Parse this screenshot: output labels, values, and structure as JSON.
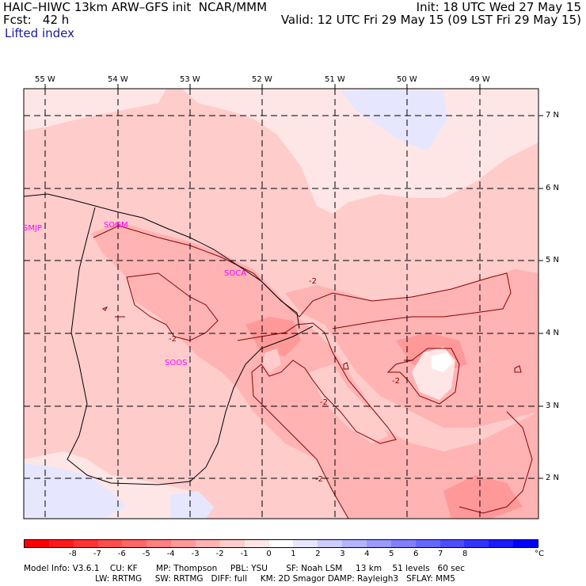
{
  "header": {
    "model_title": "HAIC–HIWC 13km ARW–GFS init  NCAR/MMM",
    "init_time": "Init: 18 UTC Wed 27 May 15",
    "forecast_hour": "Fcst:   42 h",
    "valid_time": "Valid: 12 UTC Fri 29 May 15 (09 LST Fri 29 May 15)",
    "field_name": "Lifted index"
  },
  "map": {
    "longitude_labels": [
      "55 W",
      "54 W",
      "53 W",
      "52 W",
      "51 W",
      "50 W",
      "49 W"
    ],
    "latitude_labels": [
      "7 N",
      "6 N",
      "5 N",
      "4 N",
      "3 N",
      "2 N"
    ],
    "stations": [
      "SMJP",
      "SOGM",
      "SOCA",
      "SOOS"
    ],
    "contour_labels": [
      "-2",
      "-2",
      "-2",
      "-2",
      "-2"
    ],
    "fill_colors": {
      "neg1": "#ffe6e6",
      "neg2": "#ffcccc",
      "neg3": "#ffb3b3",
      "neg4": "#ff9999",
      "zero": "#ffffff",
      "pos1": "#e6e6ff",
      "station_color": "#ff00ff",
      "contour_color": "#8b0000"
    }
  },
  "colorbar": {
    "labels": [
      "-8",
      "-7",
      "-6",
      "-5",
      "-4",
      "-3",
      "-2",
      "-1",
      "0",
      "1",
      "2",
      "3",
      "4",
      "5",
      "6",
      "7",
      "8"
    ],
    "unit": "°C",
    "colors": [
      "#ff0000",
      "#ff1a1a",
      "#ff3333",
      "#ff4d4d",
      "#ff6666",
      "#ff8080",
      "#ff9999",
      "#ffb3b3",
      "#ffcccc",
      "#ffe6e6",
      "#ffffff",
      "#e6e6ff",
      "#ccccff",
      "#b3b3ff",
      "#9999ff",
      "#8080ff",
      "#6666ff",
      "#4d4dff",
      "#3333ff",
      "#1a1aff",
      "#0000ff"
    ]
  },
  "footer": {
    "line1": "Model Info: V3.6.1    CU: KF       MP: Thompson     PBL: YSU       SF: Noah LSM     13 km    51 levels   60 sec",
    "line2": "                           LW: RRTMG     SW: RRTMG   DIFF: full     KM: 2D Smagor DAMP: Rayleigh3   SFLAY: MM5"
  }
}
